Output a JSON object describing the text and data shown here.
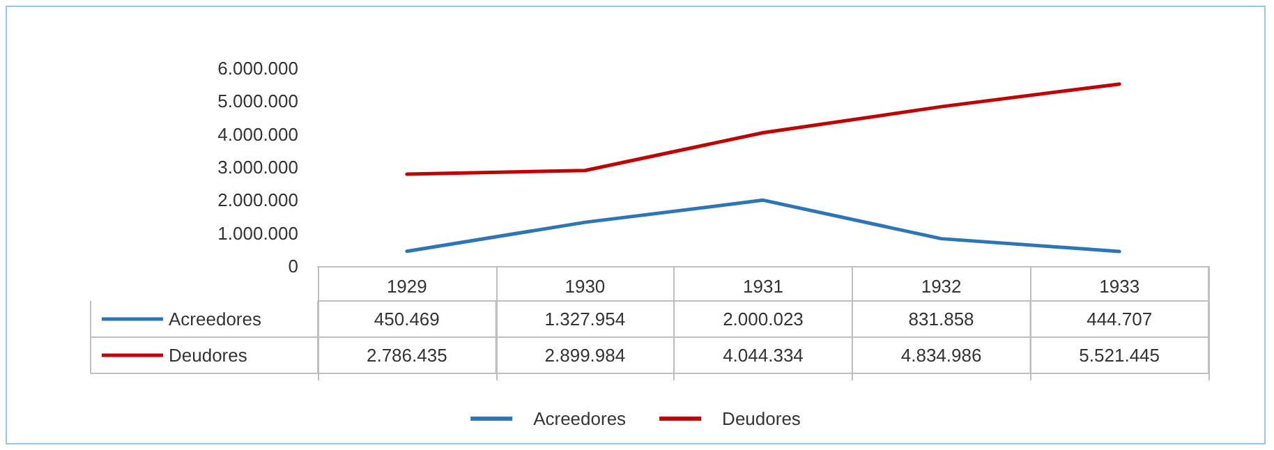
{
  "chart_data": {
    "type": "line",
    "categories": [
      "1929",
      "1930",
      "1931",
      "1932",
      "1933"
    ],
    "series": [
      {
        "name": "Acreedores",
        "color": "#2e75b6",
        "values": [
          450469,
          1327954,
          2000023,
          831858,
          444707
        ],
        "value_labels": [
          "450.469",
          "1.327.954",
          "2.000.023",
          "831.858",
          "444.707"
        ]
      },
      {
        "name": "Deudores",
        "color": "#c00000",
        "values": [
          2786435,
          2899984,
          4044334,
          4834986,
          5521445
        ],
        "value_labels": [
          "2.786.435",
          "2.899.984",
          "4.044.334",
          "4.834.986",
          "5.521.445"
        ]
      }
    ],
    "ylim": [
      0,
      6000000
    ],
    "yticks": [
      {
        "value": 0,
        "label": "0"
      },
      {
        "value": 1000000,
        "label": "1.000.000"
      },
      {
        "value": 2000000,
        "label": "2.000.000"
      },
      {
        "value": 3000000,
        "label": "3.000.000"
      },
      {
        "value": 4000000,
        "label": "4.000.000"
      },
      {
        "value": 5000000,
        "label": "5.000.000"
      },
      {
        "value": 6000000,
        "label": "6.000.000"
      }
    ],
    "grid": false,
    "legend": "bottom",
    "marker": "none",
    "line_style": "solid"
  }
}
